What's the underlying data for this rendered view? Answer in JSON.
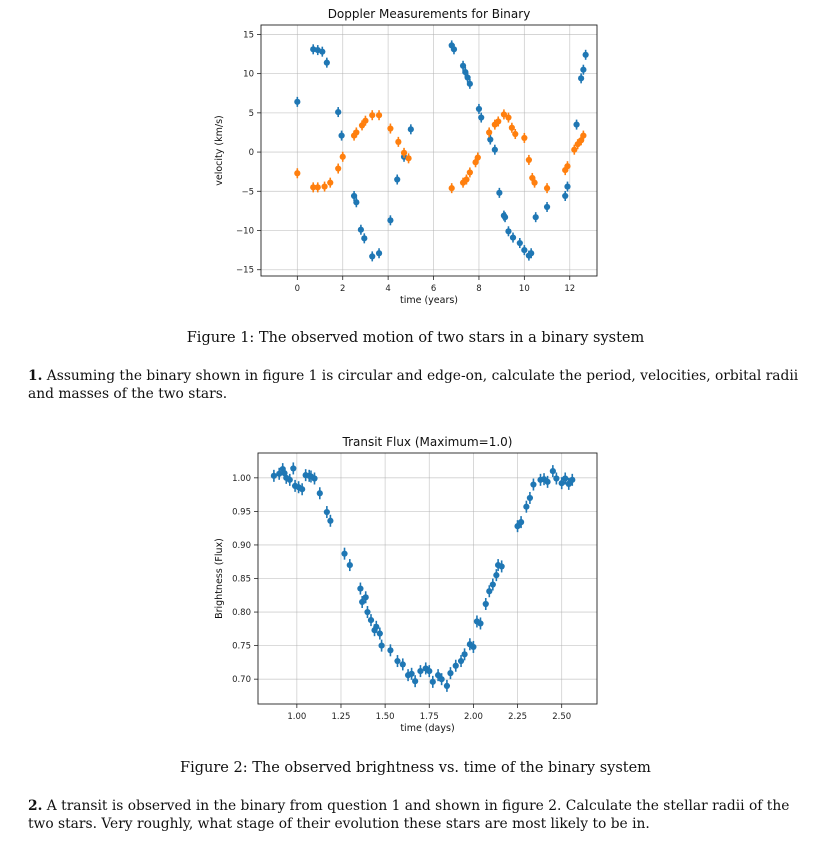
{
  "figure1": {
    "caption": "Figure 1: The observed motion of two stars in a binary system",
    "chart_data": {
      "type": "scatter",
      "title": "Doppler Measurements for Binary",
      "xlabel": "time (years)",
      "ylabel": "velocity (km/s)",
      "xlim": [
        -1.6,
        13.2
      ],
      "ylim": [
        -15.8,
        16.2
      ],
      "xticks": [
        0,
        2,
        4,
        6,
        8,
        10,
        12
      ],
      "xtick_labels": [
        "0",
        "2",
        "4",
        "6",
        "8",
        "10",
        "12"
      ],
      "yticks": [
        15,
        10,
        5,
        0,
        -5,
        -10,
        -15
      ],
      "ytick_labels": [
        "15",
        "10",
        "5",
        "0",
        "−5",
        "−10",
        "−15"
      ],
      "grid": true,
      "colors": {
        "series1": "#1f77b4",
        "series2": "#ff7f0e"
      },
      "series": [
        {
          "x": [
            0.0,
            0.7,
            0.9,
            1.1,
            1.3,
            1.8,
            1.95,
            2.5,
            2.6,
            2.8,
            2.95,
            3.3,
            3.6,
            4.1,
            4.4,
            4.7,
            5.0,
            6.8,
            6.9,
            7.3,
            7.4,
            7.5,
            7.6,
            8.0,
            8.1,
            8.5,
            8.7,
            8.9,
            9.1,
            9.15,
            9.3,
            9.5,
            9.8,
            10.0,
            10.2,
            10.3,
            10.5,
            11.0,
            11.8,
            11.9,
            12.3,
            12.5,
            12.6,
            12.7
          ],
          "y": [
            6.4,
            13.1,
            13.0,
            12.8,
            11.4,
            5.1,
            2.1,
            -5.6,
            -6.4,
            -9.9,
            -11.0,
            -13.3,
            -12.9,
            -8.7,
            -3.5,
            -0.6,
            2.9,
            13.6,
            13.1,
            11.0,
            10.2,
            9.5,
            8.7,
            5.5,
            4.4,
            1.6,
            0.3,
            -5.2,
            -8.1,
            -8.3,
            -10.1,
            -10.9,
            -11.6,
            -12.5,
            -13.2,
            -12.9,
            -8.3,
            -7.0,
            -5.6,
            -4.4,
            3.5,
            9.4,
            10.5,
            12.4
          ]
        },
        {
          "x": [
            0.0,
            0.7,
            0.9,
            1.2,
            1.45,
            1.8,
            2.0,
            2.5,
            2.6,
            2.85,
            3.0,
            3.3,
            3.6,
            4.1,
            4.45,
            4.7,
            4.9,
            6.8,
            7.3,
            7.45,
            7.6,
            7.85,
            7.95,
            8.45,
            8.7,
            8.85,
            9.1,
            9.3,
            9.45,
            9.6,
            10.0,
            10.2,
            10.35,
            10.45,
            11.0,
            11.8,
            11.9,
            12.2,
            12.35,
            12.5,
            12.6
          ],
          "y": [
            -2.7,
            -4.5,
            -4.5,
            -4.4,
            -3.9,
            -2.1,
            -0.6,
            2.1,
            2.5,
            3.4,
            4.0,
            4.7,
            4.7,
            3.0,
            1.3,
            -0.1,
            -0.8,
            -4.6,
            -3.9,
            -3.5,
            -2.6,
            -1.3,
            -0.7,
            2.5,
            3.5,
            3.9,
            4.8,
            4.4,
            3.1,
            2.3,
            1.8,
            -1.0,
            -3.3,
            -3.9,
            -4.6,
            -2.3,
            -1.8,
            0.3,
            1.0,
            1.5,
            2.1
          ]
        }
      ]
    }
  },
  "question1": {
    "number": "1.",
    "text": "Assuming the binary shown in figure 1 is circular and edge-on, calculate the period, velocities, orbital radii and masses of the two stars."
  },
  "figure2": {
    "caption": "Figure 2: The observed brightness vs. time of the binary system",
    "chart_data": {
      "type": "scatter",
      "title": "Transit Flux (Maximum=1.0)",
      "xlabel": "time (days)",
      "ylabel": "Brightness (Flux)",
      "xlim": [
        0.78,
        2.7
      ],
      "ylim": [
        0.663,
        1.037
      ],
      "xticks": [
        1.0,
        1.25,
        1.5,
        1.75,
        2.0,
        2.25,
        2.5
      ],
      "xtick_labels": [
        "1.00",
        "1.25",
        "1.50",
        "1.75",
        "2.00",
        "2.25",
        "2.50"
      ],
      "yticks": [
        1.0,
        0.95,
        0.9,
        0.85,
        0.8,
        0.75,
        0.7
      ],
      "ytick_labels": [
        "1.00",
        "0.95",
        "0.90",
        "0.85",
        "0.80",
        "0.75",
        "0.70"
      ],
      "grid": true,
      "colors": {
        "series1": "#1f77b4"
      },
      "series": [
        {
          "x": [
            0.87,
            0.9,
            0.92,
            0.93,
            0.94,
            0.96,
            0.98,
            0.99,
            1.01,
            1.03,
            1.05,
            1.07,
            1.08,
            1.1,
            1.13,
            1.17,
            1.19,
            1.27,
            1.3,
            1.36,
            1.37,
            1.39,
            1.4,
            1.42,
            1.44,
            1.45,
            1.47,
            1.48,
            1.53,
            1.57,
            1.6,
            1.63,
            1.65,
            1.67,
            1.7,
            1.73,
            1.75,
            1.77,
            1.8,
            1.82,
            1.85,
            1.87,
            1.9,
            1.93,
            1.95,
            1.98,
            2.0,
            2.02,
            2.04,
            2.07,
            2.09,
            2.11,
            2.13,
            2.14,
            2.16,
            2.25,
            2.27,
            2.3,
            2.32,
            2.34,
            2.38,
            2.4,
            2.42,
            2.45,
            2.47,
            2.5,
            2.52,
            2.54,
            2.56
          ],
          "y": [
            1.003,
            1.006,
            1.013,
            1.007,
            1.0,
            0.997,
            1.014,
            0.988,
            0.986,
            0.983,
            1.004,
            1.003,
            1.002,
            0.999,
            0.977,
            0.949,
            0.936,
            0.887,
            0.87,
            0.835,
            0.815,
            0.822,
            0.8,
            0.788,
            0.773,
            0.778,
            0.768,
            0.75,
            0.743,
            0.727,
            0.722,
            0.706,
            0.708,
            0.697,
            0.712,
            0.716,
            0.712,
            0.696,
            0.706,
            0.7,
            0.69,
            0.709,
            0.72,
            0.727,
            0.737,
            0.752,
            0.748,
            0.786,
            0.783,
            0.812,
            0.831,
            0.841,
            0.855,
            0.87,
            0.868,
            0.928,
            0.934,
            0.957,
            0.97,
            0.99,
            0.997,
            0.998,
            0.994,
            1.01,
            0.999,
            0.992,
            0.999,
            0.991,
            0.997
          ]
        }
      ]
    }
  },
  "question2": {
    "number": "2.",
    "text": "A transit is observed in the binary from question 1 and shown in figure 2. Calculate the stellar radii of the two stars. Very roughly, what stage of their evolution these stars are most likely to be in."
  }
}
